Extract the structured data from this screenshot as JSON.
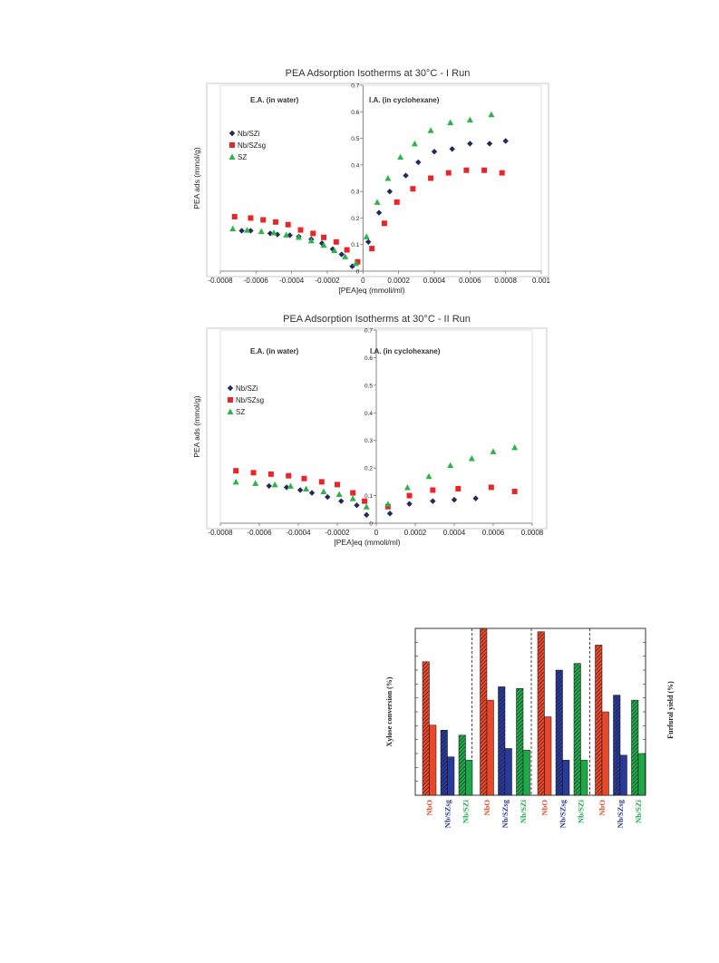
{
  "colors": {
    "nb_szi": "#1f2a5a",
    "nb_szsg": "#e8262a",
    "sz": "#2db34a",
    "nbo": "#e8472a",
    "bar_nbszsg": "#2a3a9a",
    "bar_nbszi": "#1fa84a"
  },
  "chart_data": [
    {
      "type": "scatter",
      "title": "PEA Adsorption Isotherms at 30°C - I Run",
      "xlabel": "[PEA]eq (mmoli/ml)",
      "ylabel": "PEA ads (mmol/g)",
      "xlim": [
        -0.0008,
        0.001
      ],
      "ylim": [
        0,
        0.7
      ],
      "x_ticks": [
        "-0.0008",
        "-0.0006",
        "-0.0004",
        "-0.0002",
        "0",
        "0.0002",
        "0.0004",
        "0.0006",
        "0.0008",
        "0.001"
      ],
      "y_ticks": [
        "0",
        "0.1",
        "0.2",
        "0.3",
        "0.4",
        "0.5",
        "0.6",
        "0.7"
      ],
      "annotations": [
        "E.A. (in water)",
        "I.A. (in cyclohexane)"
      ],
      "legend_position": "left",
      "grid": false,
      "series": [
        {
          "name": "Nb/SZi",
          "marker": "diamond",
          "x": [
            -0.00068,
            -0.00063,
            -0.00052,
            -0.00048,
            -0.00041,
            -0.00036,
            -0.00029,
            -0.00023,
            -0.00017,
            -0.00012,
            -6e-05,
            3e-05,
            9e-05,
            0.00015,
            0.00024,
            0.00031,
            0.0004,
            0.0005,
            0.0006,
            0.00071,
            0.0008
          ],
          "y": [
            0.152,
            0.152,
            0.142,
            0.138,
            0.135,
            0.13,
            0.12,
            0.105,
            0.083,
            0.063,
            0.018,
            0.11,
            0.22,
            0.3,
            0.36,
            0.41,
            0.45,
            0.46,
            0.48,
            0.48,
            0.49
          ]
        },
        {
          "name": "Nb/SZsg",
          "marker": "square",
          "x": [
            -0.00072,
            -0.00063,
            -0.00056,
            -0.00049,
            -0.00042,
            -0.00035,
            -0.00028,
            -0.00022,
            -0.00015,
            -9e-05,
            -3e-05,
            5e-05,
            0.00012,
            0.00019,
            0.00028,
            0.00038,
            0.00048,
            0.00058,
            0.00068,
            0.00078
          ],
          "y": [
            0.205,
            0.2,
            0.193,
            0.185,
            0.175,
            0.155,
            0.142,
            0.127,
            0.11,
            0.08,
            0.035,
            0.085,
            0.18,
            0.26,
            0.31,
            0.35,
            0.37,
            0.38,
            0.38,
            0.37
          ]
        },
        {
          "name": "SZ",
          "marker": "triangle",
          "x": [
            -0.00073,
            -0.00065,
            -0.00057,
            -0.0005,
            -0.00043,
            -0.00036,
            -0.00029,
            -0.00022,
            -0.00016,
            -0.0001,
            -4e-05,
            2e-05,
            8e-05,
            0.00014,
            0.00021,
            0.00029,
            0.00038,
            0.00049,
            0.0006,
            0.00072
          ],
          "y": [
            0.16,
            0.155,
            0.15,
            0.145,
            0.137,
            0.128,
            0.115,
            0.098,
            0.078,
            0.055,
            0.03,
            0.13,
            0.26,
            0.35,
            0.43,
            0.48,
            0.53,
            0.56,
            0.57,
            0.59
          ]
        }
      ]
    },
    {
      "type": "scatter",
      "title": "PEA Adsorption Isotherms at 30°C - II Run",
      "xlabel": "[PEA]eq (mmoli/ml)",
      "ylabel": "PEA ads (mmol/g)",
      "xlim": [
        -0.0008,
        0.0008
      ],
      "ylim": [
        0,
        0.7
      ],
      "x_ticks": [
        "-0.0008",
        "-0.0006",
        "-0.0004",
        "-0.0002",
        "0",
        "0.0002",
        "0.0004",
        "0.0006",
        "0.0008"
      ],
      "y_ticks": [
        "0",
        "0.1",
        "0.2",
        "0.3",
        "0.4",
        "0.5",
        "0.6",
        "0.7"
      ],
      "annotations": [
        "E.A. (in water)",
        "I.A. (in cyclohexane)"
      ],
      "legend_position": "left",
      "grid": false,
      "series": [
        {
          "name": "Nb/SZi",
          "marker": "diamond",
          "x": [
            -0.00055,
            -0.00046,
            -0.00039,
            -0.00033,
            -0.00025,
            -0.00018,
            -0.0001,
            -5e-05,
            7e-05,
            0.00017,
            0.00029,
            0.0004,
            0.00051
          ],
          "y": [
            0.135,
            0.13,
            0.12,
            0.11,
            0.095,
            0.08,
            0.065,
            0.03,
            0.035,
            0.07,
            0.08,
            0.085,
            0.09
          ]
        },
        {
          "name": "Nb/SZsg",
          "marker": "square",
          "x": [
            -0.00072,
            -0.00063,
            -0.00054,
            -0.00045,
            -0.00037,
            -0.00028,
            -0.0002,
            -0.00012,
            -6e-05,
            6e-05,
            0.00017,
            0.00029,
            0.00042,
            0.00059,
            0.00071
          ],
          "y": [
            0.19,
            0.183,
            0.178,
            0.172,
            0.162,
            0.15,
            0.14,
            0.11,
            0.08,
            0.06,
            0.1,
            0.12,
            0.125,
            0.13,
            0.115
          ]
        },
        {
          "name": "SZ",
          "marker": "triangle",
          "x": [
            -0.00072,
            -0.00062,
            -0.00052,
            -0.00044,
            -0.00036,
            -0.00027,
            -0.00019,
            -0.00012,
            -5e-05,
            6e-05,
            0.00016,
            0.00027,
            0.00038,
            0.00049,
            0.0006,
            0.00071
          ],
          "y": [
            0.15,
            0.145,
            0.14,
            0.135,
            0.125,
            0.115,
            0.105,
            0.09,
            0.06,
            0.07,
            0.13,
            0.17,
            0.21,
            0.235,
            0.26,
            0.275
          ]
        }
      ]
    },
    {
      "type": "bar",
      "title": "",
      "ylabel": "Xylose conversion (%)",
      "ylabel_right": "Furfural yield (%)",
      "ylim": [
        0,
        100
      ],
      "groups": 4,
      "categories": [
        "NbO",
        "Nb/SZsg",
        "Nb/SZi",
        "NbO",
        "Nb/SZsg",
        "Nb/SZi",
        "NbO",
        "Nb/SZsg",
        "Nb/SZi",
        "NbO",
        "Nb/SZsg",
        "Nb/SZi"
      ],
      "category_colors": [
        "nbo",
        "bar_nbszsg",
        "bar_nbszi",
        "nbo",
        "bar_nbszsg",
        "bar_nbszi",
        "nbo",
        "bar_nbszsg",
        "bar_nbszi",
        "nbo",
        "bar_nbszsg",
        "bar_nbszi"
      ],
      "series": [
        {
          "values": [
            80,
            39,
            36,
            100,
            65,
            64,
            98,
            75,
            79,
            90,
            60,
            57
          ],
          "pattern": "hatched"
        },
        {
          "values": [
            42,
            23,
            21,
            57,
            28,
            27,
            47,
            21,
            21,
            50,
            24,
            25
          ],
          "pattern": "solid"
        }
      ]
    }
  ]
}
